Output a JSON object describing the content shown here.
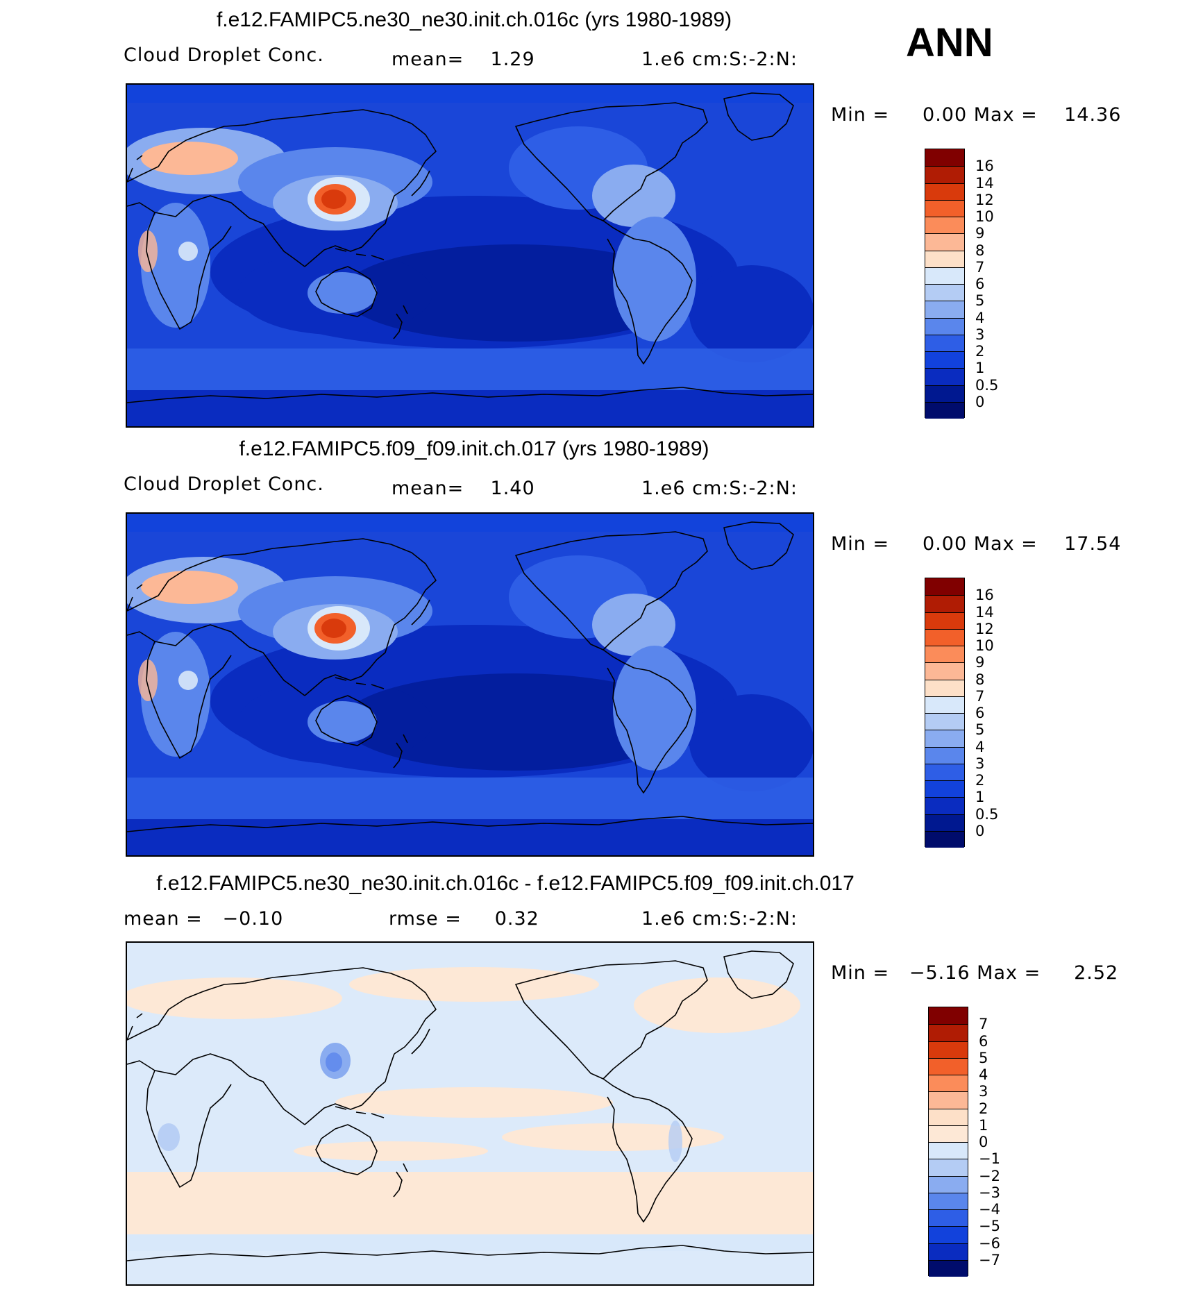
{
  "season": "ANN",
  "panels": [
    {
      "title": "f.e12.FAMIPC5.ne30_ne30.init.ch.016c (yrs 1980-1989)",
      "left": "Cloud Droplet Conc.",
      "center": "mean=    1.29",
      "right": "1.e6 cm:S:-2:N:",
      "minmax": "Min =     0.00 Max =    14.36",
      "levels": [
        "16",
        "14",
        "12",
        "10",
        "9",
        "8",
        "7",
        "6",
        "5",
        "4",
        "3",
        "2",
        "1",
        "0.5",
        "0"
      ],
      "colors": [
        "#800000",
        "#b01c04",
        "#d93a0c",
        "#f2602a",
        "#fb8c5a",
        "#fcb896",
        "#fde0c8",
        "#d8e8fa",
        "#b4ccf4",
        "#8aacf0",
        "#5a86ec",
        "#2e5ee6",
        "#1242dc",
        "#0a2cc0",
        "#001890",
        "#000c6c"
      ],
      "background": "#1a46d8",
      "field_kind": "full"
    },
    {
      "title": "f.e12.FAMIPC5.f09_f09.init.ch.017 (yrs 1980-1989)",
      "left": "Cloud Droplet Conc.",
      "center": "mean=    1.40",
      "right": "1.e6 cm:S:-2:N:",
      "minmax": "Min =     0.00 Max =    17.54",
      "levels": [
        "16",
        "14",
        "12",
        "10",
        "9",
        "8",
        "7",
        "6",
        "5",
        "4",
        "3",
        "2",
        "1",
        "0.5",
        "0"
      ],
      "colors": [
        "#800000",
        "#b01c04",
        "#d93a0c",
        "#f2602a",
        "#fb8c5a",
        "#fcb896",
        "#fde0c8",
        "#d8e8fa",
        "#b4ccf4",
        "#8aacf0",
        "#5a86ec",
        "#2e5ee6",
        "#1242dc",
        "#0a2cc0",
        "#001890",
        "#000c6c"
      ],
      "background": "#1a46d8",
      "field_kind": "full"
    },
    {
      "title": "f.e12.FAMIPC5.ne30_ne30.init.ch.016c - f.e12.FAMIPC5.f09_f09.init.ch.017",
      "left": "mean =   −0.10",
      "center": "rmse =     0.32",
      "right": "1.e6 cm:S:-2:N:",
      "minmax": "Min =   −5.16 Max =     2.52",
      "levels": [
        "7",
        "6",
        "5",
        "4",
        "3",
        "2",
        "1",
        "0",
        "−1",
        "−2",
        "−3",
        "−4",
        "−5",
        "−6",
        "−7"
      ],
      "colors": [
        "#800000",
        "#b01c04",
        "#d93a0c",
        "#f2602a",
        "#fb8c5a",
        "#fcb896",
        "#fde0c8",
        "#fde8d6",
        "#d8e8fa",
        "#b4ccf4",
        "#8aacf0",
        "#5a86ec",
        "#2e5ee6",
        "#1242dc",
        "#0a2cc0",
        "#000c6c"
      ],
      "background": "#dceafa",
      "field_kind": "diff"
    }
  ]
}
